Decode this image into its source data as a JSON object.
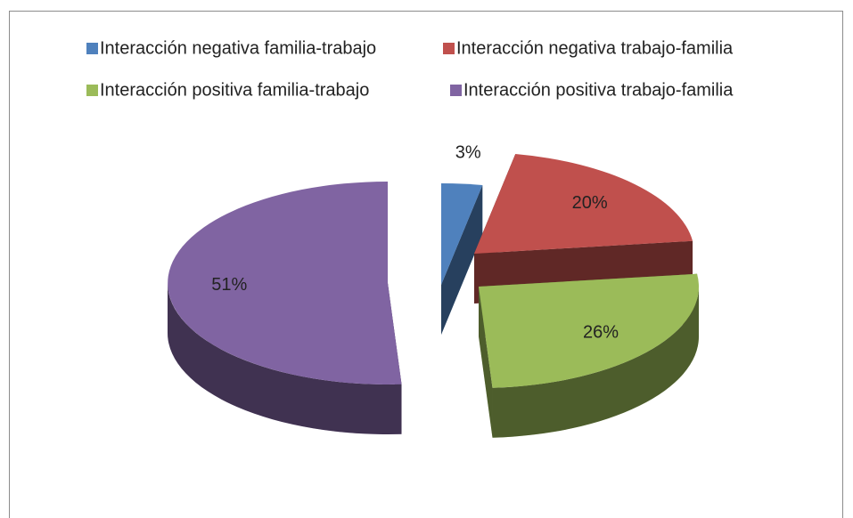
{
  "chart_data": {
    "type": "pie",
    "categories": [
      "Interacción negativa familia-trabajo",
      "Interacción negativa trabajo-familia",
      "Interacción positiva familia-trabajo",
      "Interacción positiva trabajo-familia"
    ],
    "values": [
      3,
      20,
      26,
      51
    ],
    "value_labels": [
      "3%",
      "20%",
      "26%",
      "51%"
    ],
    "colors": [
      "#4f81bd",
      "#c0504d",
      "#9bbb59",
      "#8064a2"
    ],
    "legend": "top"
  }
}
